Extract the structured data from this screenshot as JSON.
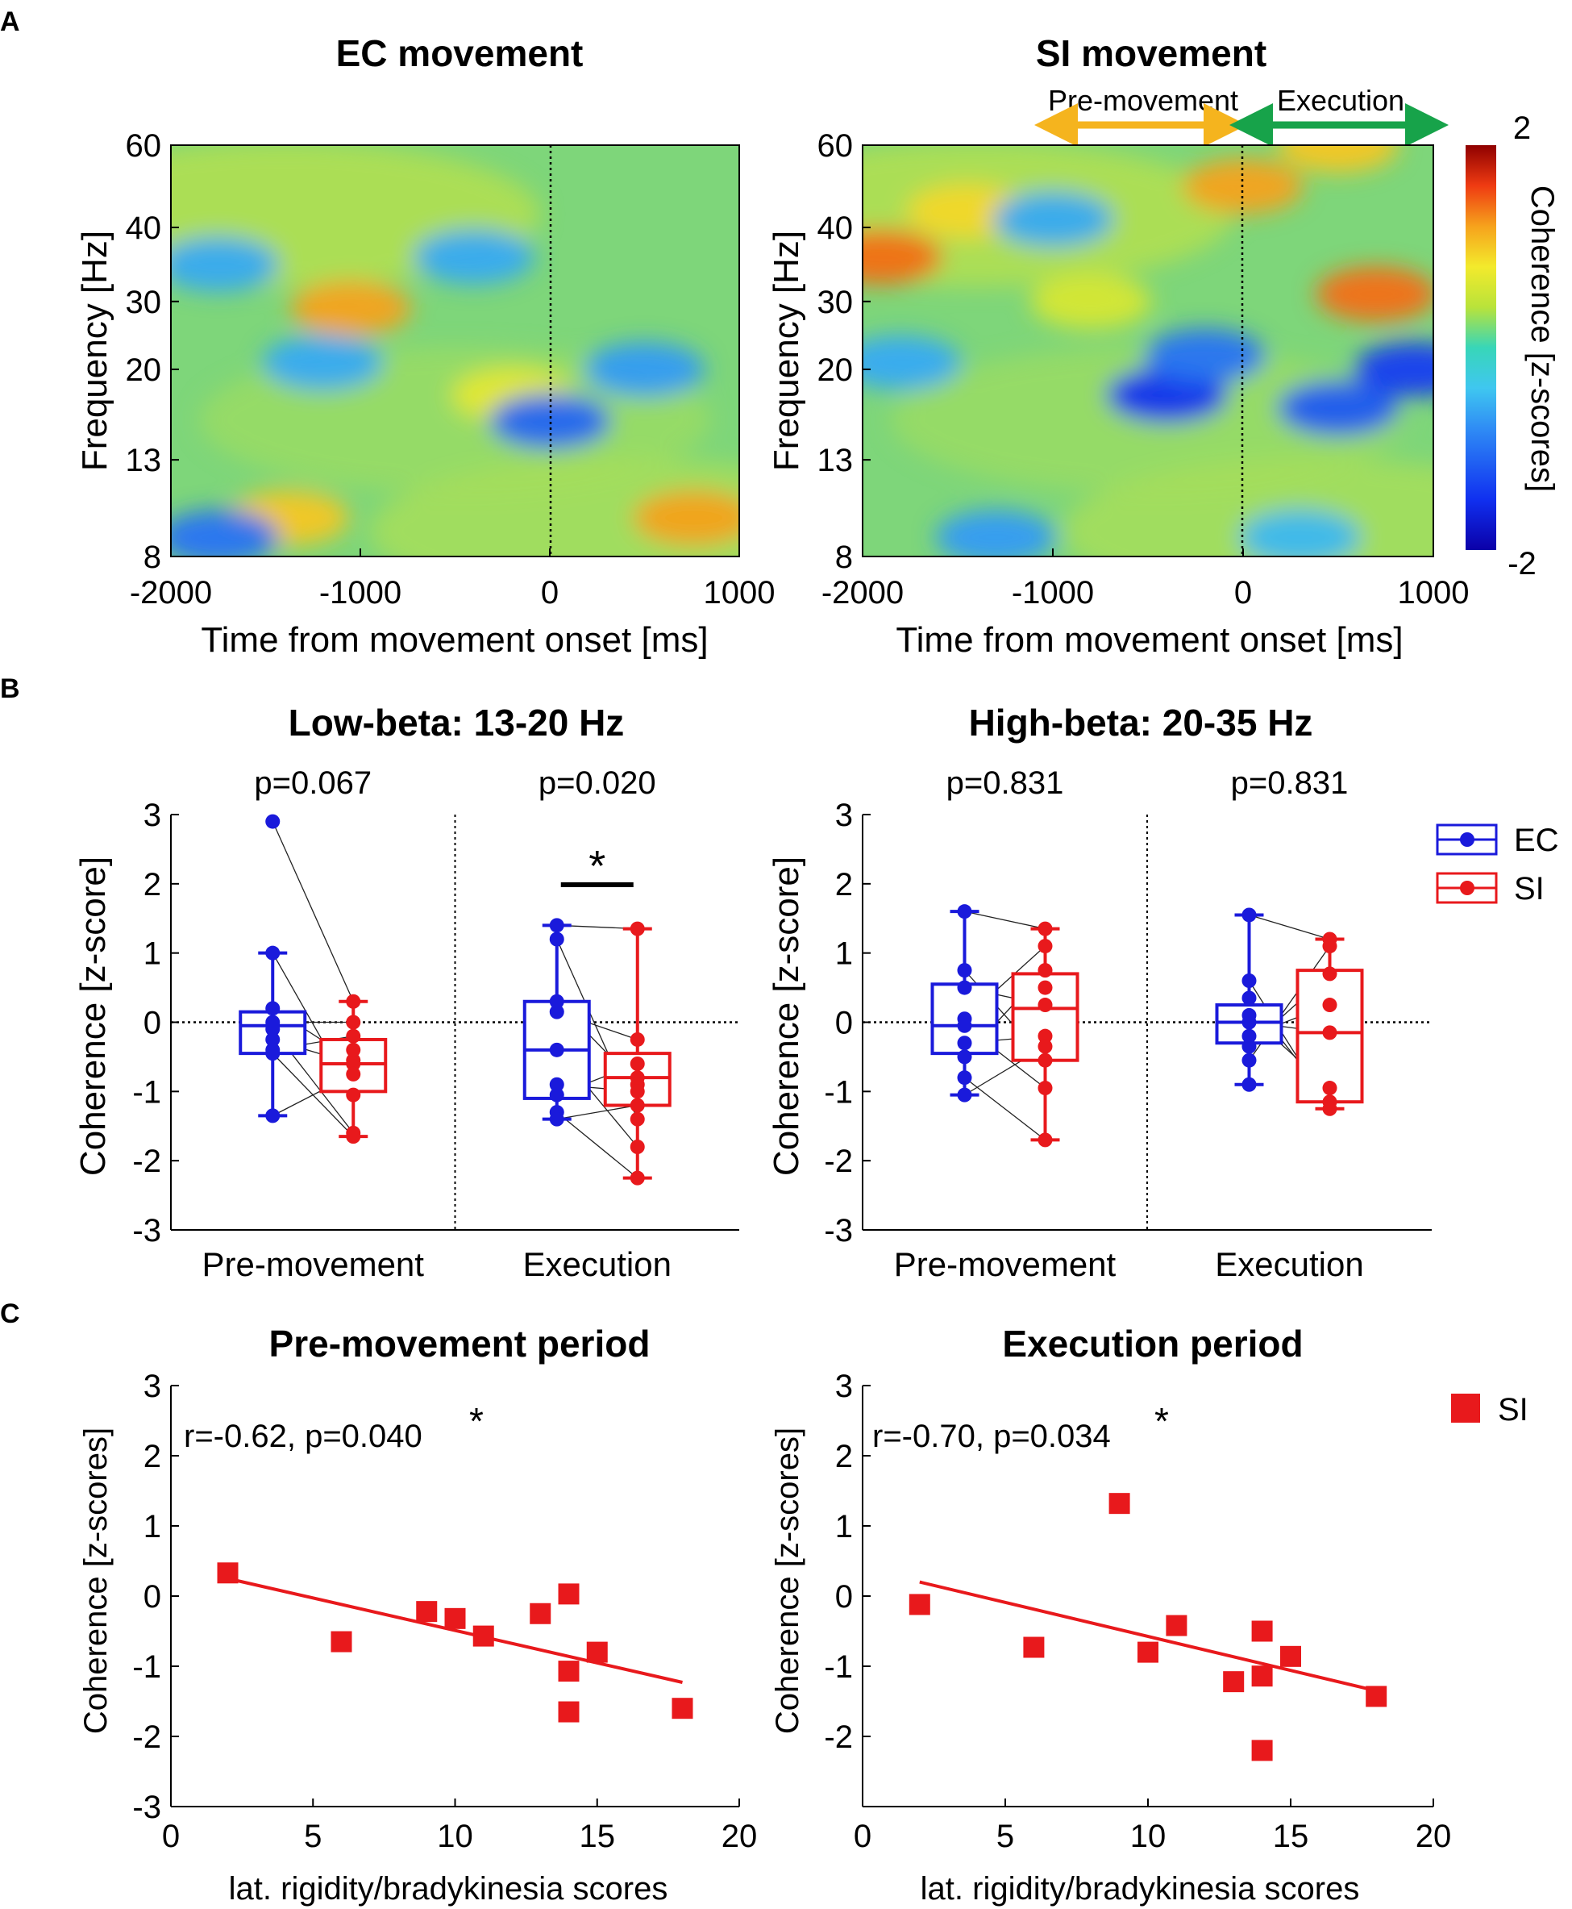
{
  "panel_labels": {
    "a": "A",
    "b": "B",
    "c": "C"
  },
  "colors": {
    "ec": "#1a1adb",
    "si": "#e8191c",
    "pre_arrow": "#f5b41e",
    "exec_arrow": "#17a34a"
  },
  "chart_data": [
    {
      "id": "A1",
      "type": "heatmap",
      "title": "EC movement",
      "xlabel": "Time from movement onset [ms]",
      "ylabel": "Frequency [Hz]",
      "xlim": [
        -2000,
        1000
      ],
      "x_ticks": [
        "-2000",
        "-1000",
        "0",
        "1000"
      ],
      "y_ticks": [
        "8",
        "13",
        "20",
        "30",
        "40",
        "60"
      ],
      "onset_line_ms": 0,
      "hotspots": [
        {
          "t": -1050,
          "f": 29,
          "z": 1.2
        },
        {
          "t": -1380,
          "f": 10,
          "z": 1.0
        },
        {
          "t": 760,
          "f": 10,
          "z": 1.2
        },
        {
          "t": -200,
          "f": 18,
          "z": 0.7
        },
        {
          "t": 0,
          "f": 16,
          "z": -1.1
        },
        {
          "t": -1750,
          "f": 9,
          "z": -1.0
        },
        {
          "t": -1750,
          "f": 35,
          "z": -0.6
        },
        {
          "t": -1200,
          "f": 21,
          "z": -0.6
        },
        {
          "t": 500,
          "f": 20,
          "z": -0.7
        },
        {
          "t": -400,
          "f": 36,
          "z": -0.6
        }
      ]
    },
    {
      "id": "A2",
      "type": "heatmap",
      "title": "SI movement",
      "xlabel": "Time from movement onset [ms]",
      "ylabel": "Frequency [Hz]",
      "xlim": [
        -2000,
        1000
      ],
      "x_ticks": [
        "-2000",
        "-1000",
        "0",
        "1000"
      ],
      "y_ticks": [
        "8",
        "13",
        "20",
        "30",
        "40",
        "60"
      ],
      "onset_line_ms": 0,
      "pre_label": "Pre-movement",
      "exec_label": "Execution",
      "colorbar": {
        "label": "Coherence [z-scores]",
        "min_label": "-2",
        "max_label": "2",
        "min": -2,
        "max": 2
      },
      "hotspots": [
        {
          "t": -1900,
          "f": 36,
          "z": 1.4
        },
        {
          "t": 0,
          "f": 50,
          "z": 1.2
        },
        {
          "t": 700,
          "f": 31,
          "z": 1.4
        },
        {
          "t": 500,
          "f": 60,
          "z": 1.0
        },
        {
          "t": -1450,
          "f": 44,
          "z": 0.9
        },
        {
          "t": -800,
          "f": 30,
          "z": 0.6
        },
        {
          "t": -400,
          "f": 18,
          "z": -1.5
        },
        {
          "t": 500,
          "f": 17,
          "z": -1.2
        },
        {
          "t": 900,
          "f": 20,
          "z": -1.4
        },
        {
          "t": -200,
          "f": 22,
          "z": -1.0
        },
        {
          "t": -1000,
          "f": 42,
          "z": -0.6
        },
        {
          "t": -1300,
          "f": 9,
          "z": -0.7
        },
        {
          "t": 300,
          "f": 9,
          "z": -0.5
        },
        {
          "t": -1800,
          "f": 21,
          "z": -0.6
        }
      ]
    },
    {
      "id": "B1",
      "type": "box",
      "title": "Low-beta: 13-20 Hz",
      "ylabel": "Coherence [z-score]",
      "ylim": [
        -3,
        3
      ],
      "y_ticks": [
        "3",
        "2",
        "1",
        "0",
        "-1",
        "-2",
        "-3"
      ],
      "groups": [
        {
          "label": "Pre-movement",
          "p_text": "p=0.067",
          "ec": [
            2.9,
            1.0,
            0.2,
            0.0,
            -0.1,
            -0.25,
            -0.4,
            -0.45,
            -1.35
          ],
          "si": [
            0.3,
            0.0,
            -0.2,
            -0.4,
            -0.55,
            -0.6,
            -0.75,
            -1.05,
            -1.6,
            -1.65
          ],
          "ec_box": {
            "q1": -0.45,
            "median": -0.05,
            "q3": 0.15,
            "min": -1.35,
            "max": 1.0
          },
          "si_box": {
            "q1": -1.0,
            "median": -0.6,
            "q3": -0.25,
            "min": -1.65,
            "max": 0.3
          }
        },
        {
          "label": "Execution",
          "p_text": "p=0.020",
          "sig": "*",
          "ec": [
            1.4,
            1.2,
            0.3,
            0.15,
            -0.4,
            -0.9,
            -1.05,
            -1.3,
            -1.4
          ],
          "si": [
            1.35,
            -0.25,
            -0.6,
            -0.8,
            -0.9,
            -1.0,
            -1.2,
            -1.4,
            -1.8,
            -2.25
          ],
          "ec_box": {
            "q1": -1.1,
            "median": -0.4,
            "q3": 0.3,
            "min": -1.4,
            "max": 1.4
          },
          "si_box": {
            "q1": -1.2,
            "median": -0.8,
            "q3": -0.45,
            "min": -2.25,
            "max": 1.35
          }
        }
      ],
      "legend": {
        "ec": "EC",
        "si": "SI"
      }
    },
    {
      "id": "B2",
      "type": "box",
      "title": "High-beta: 20-35 Hz",
      "ylabel": "Coherence [z-score]",
      "ylim": [
        -3,
        3
      ],
      "y_ticks": [
        "3",
        "2",
        "1",
        "0",
        "-1",
        "-2",
        "-3"
      ],
      "groups": [
        {
          "label": "Pre-movement",
          "p_text": "p=0.831",
          "ec": [
            1.6,
            0.75,
            0.5,
            0.05,
            -0.05,
            -0.3,
            -0.5,
            -0.8,
            -1.05
          ],
          "si": [
            1.35,
            1.1,
            0.75,
            0.5,
            0.25,
            -0.2,
            -0.35,
            -0.55,
            -0.95,
            -1.7
          ],
          "ec_box": {
            "q1": -0.45,
            "median": -0.05,
            "q3": 0.55,
            "min": -1.05,
            "max": 1.6
          },
          "si_box": {
            "q1": -0.55,
            "median": 0.2,
            "q3": 0.7,
            "min": -1.7,
            "max": 1.35
          }
        },
        {
          "label": "Execution",
          "p_text": "p=0.831",
          "ec": [
            1.55,
            0.6,
            0.35,
            0.1,
            0.0,
            -0.2,
            -0.35,
            -0.55,
            -0.9
          ],
          "si": [
            1.2,
            1.1,
            0.7,
            0.25,
            -0.15,
            -0.95,
            -1.15,
            -1.25
          ],
          "ec_box": {
            "q1": -0.3,
            "median": 0.0,
            "q3": 0.25,
            "min": -0.9,
            "max": 1.55
          },
          "si_box": {
            "q1": -1.15,
            "median": -0.15,
            "q3": 0.75,
            "min": -1.25,
            "max": 1.2
          }
        }
      ]
    },
    {
      "id": "C1",
      "type": "scatter",
      "title": "Pre-movement period",
      "xlabel": "lat. rigidity/bradykinesia scores",
      "ylabel": "Coherence [z-scores]",
      "xlim": [
        0,
        20
      ],
      "ylim": [
        -3,
        3
      ],
      "x_ticks": [
        "0",
        "5",
        "10",
        "15",
        "20"
      ],
      "y_ticks": [
        "3",
        "2",
        "1",
        "0",
        "-1",
        "-2",
        "-3"
      ],
      "stat_text": "r=-0.62, p=0.040",
      "sig": "*",
      "points": [
        [
          2,
          0.33
        ],
        [
          6,
          -0.65
        ],
        [
          9,
          -0.22
        ],
        [
          10,
          -0.32
        ],
        [
          11,
          -0.57
        ],
        [
          13,
          -0.25
        ],
        [
          14,
          0.03
        ],
        [
          14,
          -1.07
        ],
        [
          14,
          -1.65
        ],
        [
          15,
          -0.8
        ],
        [
          18,
          -1.6
        ]
      ],
      "fit": [
        [
          2,
          0.25
        ],
        [
          18,
          -1.23
        ]
      ]
    },
    {
      "id": "C2",
      "type": "scatter",
      "title": "Execution period",
      "xlabel": "lat. rigidity/bradykinesia scores",
      "ylabel": "Coherence [z-scores]",
      "xlim": [
        0,
        20
      ],
      "ylim": [
        -3,
        3
      ],
      "x_ticks": [
        "0",
        "5",
        "10",
        "15",
        "20"
      ],
      "y_ticks": [
        "3",
        "2",
        "1",
        "",
        "0",
        "-1",
        "-2"
      ],
      "stat_text": "r=-0.70, p=0.034",
      "sig": "*",
      "points": [
        [
          2,
          -0.12
        ],
        [
          6,
          -0.73
        ],
        [
          9,
          1.32
        ],
        [
          10,
          -0.8
        ],
        [
          11,
          -0.42
        ],
        [
          13,
          -1.22
        ],
        [
          14,
          -0.5
        ],
        [
          14,
          -1.14
        ],
        [
          14,
          -2.2
        ],
        [
          15,
          -0.86
        ],
        [
          18,
          -1.43
        ]
      ],
      "fit": [
        [
          2,
          0.2
        ],
        [
          18,
          -1.35
        ]
      ],
      "legend": "SI"
    }
  ]
}
